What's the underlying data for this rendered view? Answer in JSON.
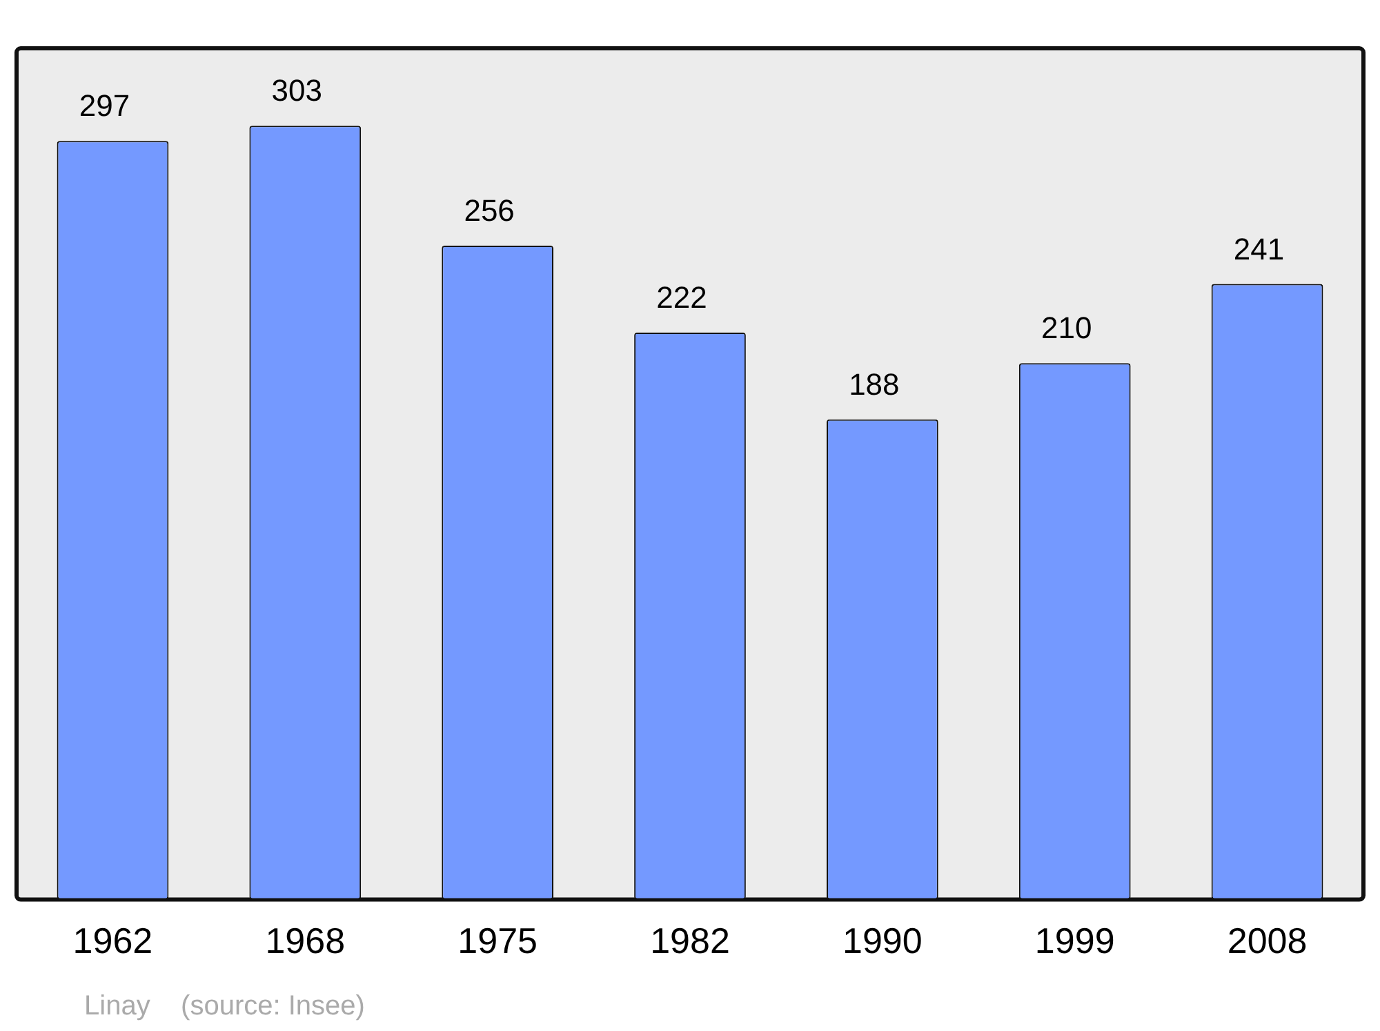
{
  "chart_data": {
    "type": "bar",
    "categories": [
      "1962",
      "1968",
      "1975",
      "1982",
      "1990",
      "1999",
      "2008"
    ],
    "values": [
      297,
      303,
      256,
      222,
      188,
      210,
      241
    ],
    "color": "#7499ff",
    "data_labels": true,
    "annotations": [
      "Linay    (source: Insee)"
    ]
  }
}
